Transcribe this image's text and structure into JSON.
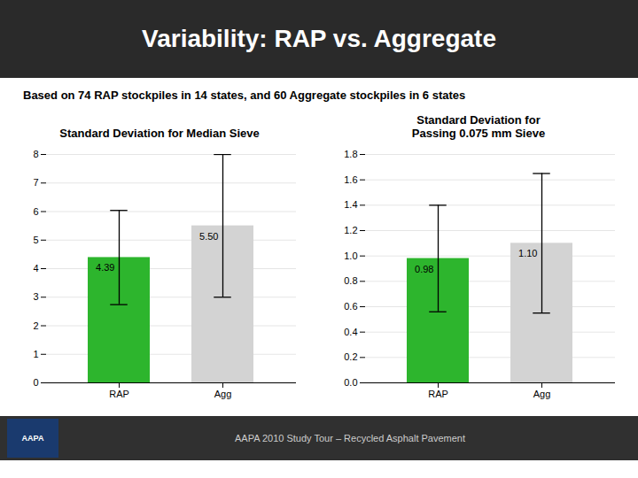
{
  "title": "Variability: RAP vs. Aggregate",
  "subtitle": "Based on 74 RAP stockpiles in 14 states, and 60 Aggregate stockpiles in 6 states",
  "annotations": [
    "AAPA",
    "AAPA 2010 Study Tour – Recycled Asphalt Pavement"
  ],
  "chart_data": [
    {
      "type": "bar",
      "title": "Standard Deviation for Median Sieve",
      "categories": [
        "RAP",
        "Agg"
      ],
      "values": [
        4.39,
        5.5
      ],
      "value_labels": [
        "4.39",
        "5.50"
      ],
      "errors": [
        1.65,
        2.5
      ],
      "colors": [
        "#2db52d",
        "#d3d3d3"
      ],
      "ylim": [
        0,
        8
      ],
      "yticks": [
        0,
        1,
        2,
        3,
        4,
        5,
        6,
        7,
        8
      ],
      "grid": true,
      "data_labels": true
    },
    {
      "type": "bar",
      "title": "Standard Deviation for\nPassing 0.075 mm Sieve",
      "categories": [
        "RAP",
        "Agg"
      ],
      "values": [
        0.98,
        1.1
      ],
      "value_labels": [
        "0.98",
        "1.10"
      ],
      "errors": [
        0.42,
        0.55
      ],
      "colors": [
        "#2db52d",
        "#d3d3d3"
      ],
      "ylim": [
        0,
        1.8
      ],
      "yticks": [
        {
          "value": 0,
          "label": "0.0"
        },
        0.2,
        0.4,
        0.6,
        0.8,
        {
          "value": 1.0,
          "label": "1.0"
        },
        1.2,
        1.4,
        1.6,
        1.8
      ],
      "grid": true,
      "data_labels": true
    }
  ]
}
